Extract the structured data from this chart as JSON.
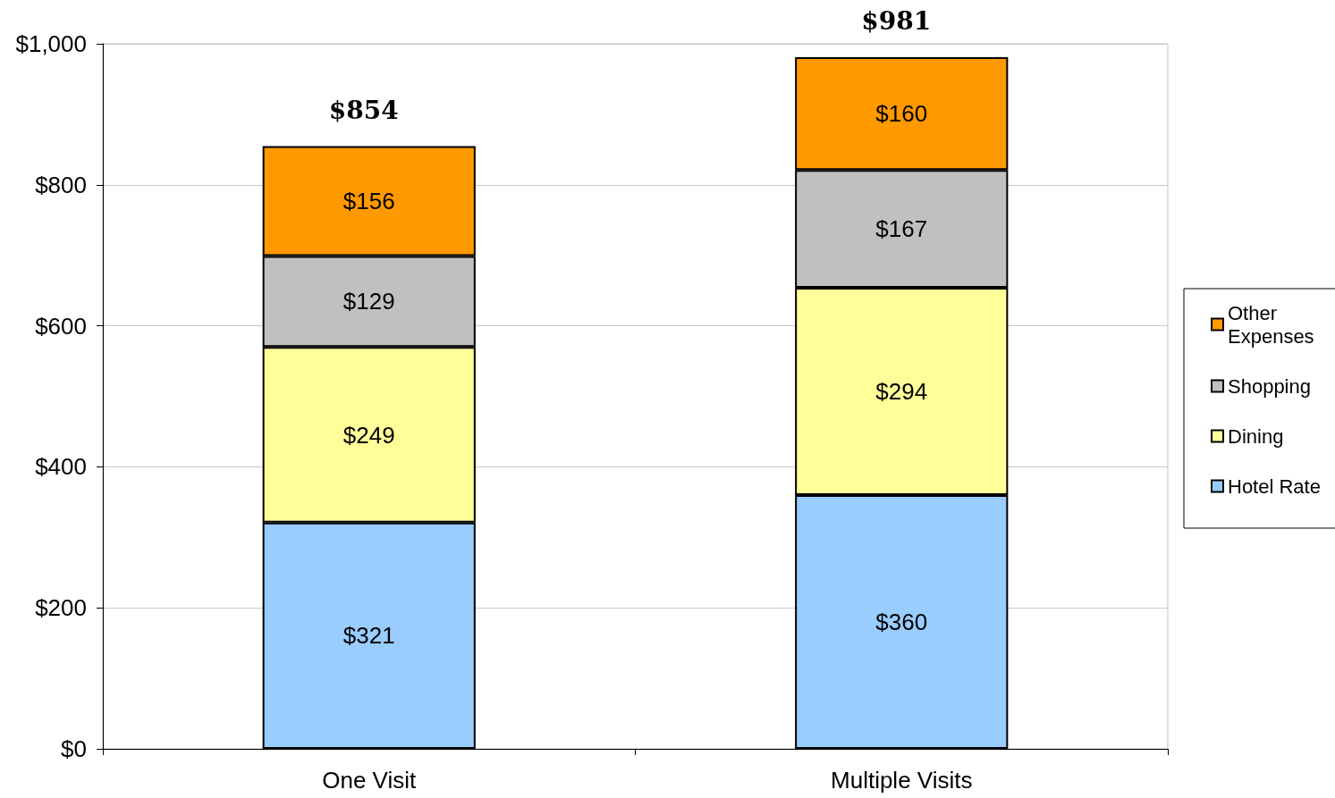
{
  "chart_data": {
    "type": "bar",
    "stacked": true,
    "categories": [
      "One Visit",
      "Multiple Visits"
    ],
    "series": [
      {
        "name": "Hotel Rate",
        "color": "#99ccff",
        "values": [
          321,
          360
        ],
        "value_labels": [
          "$321",
          "$360"
        ]
      },
      {
        "name": "Dining",
        "color": "#ffff99",
        "values": [
          249,
          294
        ],
        "value_labels": [
          "$249",
          "$294"
        ]
      },
      {
        "name": "Shopping",
        "color": "#c0c0c0",
        "values": [
          129,
          167
        ],
        "value_labels": [
          "$129",
          "$167"
        ]
      },
      {
        "name": "Other Expenses",
        "color": "#ff9900",
        "values": [
          156,
          160
        ],
        "value_labels": [
          "$156",
          "$160"
        ]
      }
    ],
    "totals": [
      "$854",
      "$981"
    ],
    "ylim": [
      0,
      1000
    ],
    "yticks": [
      {
        "value": 0,
        "label": "$0"
      },
      {
        "value": 200,
        "label": "$200"
      },
      {
        "value": 400,
        "label": "$400"
      },
      {
        "value": 600,
        "label": "$600"
      },
      {
        "value": 800,
        "label": "$800"
      },
      {
        "value": 1000,
        "label": "$1,000"
      }
    ],
    "grid": "y",
    "legend": "right"
  }
}
